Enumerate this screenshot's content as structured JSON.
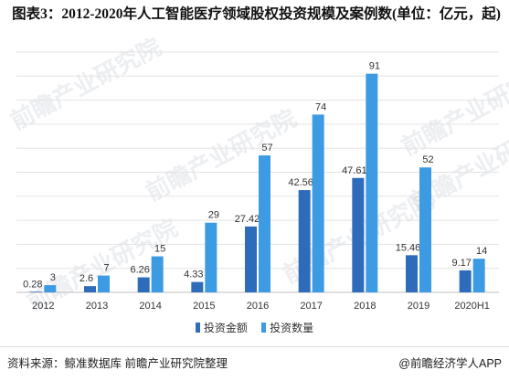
{
  "title": "图表3：2012-2020年人工智能医疗领域股权投资规模及案例数(单位：亿元，起)",
  "source": "资料来源：鲸准数据库 前瞻产业研究院整理",
  "credit": "@前瞻经济学人APP",
  "watermark": "前瞻产业研究院",
  "colors": {
    "amount": "#2e6cbb",
    "count": "#3d9be3",
    "grid": "#e3e3e3",
    "axis": "#bfbfbf"
  },
  "chart_data": {
    "type": "bar",
    "categories": [
      "2012",
      "2013",
      "2014",
      "2015",
      "2016",
      "2017",
      "2018",
      "2019",
      "2020H1"
    ],
    "series": [
      {
        "name": "投资金额",
        "values": [
          0.28,
          2.6,
          6.26,
          4.33,
          27.42,
          42.56,
          47.61,
          15.46,
          9.17
        ],
        "labels": [
          "0.28",
          "2.6",
          "6.26",
          "4.33",
          "27.42",
          "42.56",
          "47.61",
          "15.46",
          "9.17"
        ]
      },
      {
        "name": "投资数量",
        "values": [
          3,
          7,
          15,
          29,
          57,
          74,
          91,
          52,
          14
        ],
        "labels": [
          "3",
          "7",
          "15",
          "29",
          "57",
          "74",
          "91",
          "52",
          "14"
        ]
      }
    ],
    "ylim": [
      0,
      100
    ],
    "grid": true,
    "legend_position": "bottom",
    "show_y_axis_labels": false
  }
}
